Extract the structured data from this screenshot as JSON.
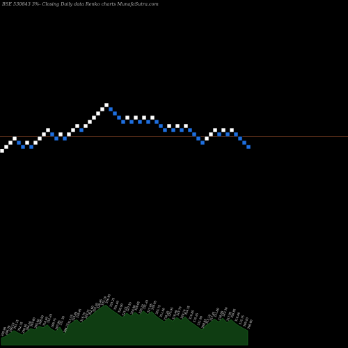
{
  "chart_data": {
    "type": "renko",
    "title": "BSE 530843 3%-  Closing Daily data  Renko  charts MunafaSutra.com",
    "colors": {
      "background": "#000000",
      "up_brick": "#ffffff",
      "down_brick": "#1e6fe0",
      "reference_line": "#a0522d",
      "volume_fill": "#0f3d12",
      "volume_line": "#1d6b22",
      "volume_label": "#e6e6e6"
    },
    "reference_price": 357.5,
    "bricks": [
      {
        "direction": "up",
        "price": 343.6
      },
      {
        "direction": "up",
        "price": 348.2
      },
      {
        "direction": "up",
        "price": 353.0
      },
      {
        "direction": "up",
        "price": 357.8
      },
      {
        "direction": "down",
        "price": 353.0
      },
      {
        "direction": "down",
        "price": 348.2
      },
      {
        "direction": "up",
        "price": 353.0
      },
      {
        "direction": "down",
        "price": 348.2
      },
      {
        "direction": "up",
        "price": 353.0
      },
      {
        "direction": "up",
        "price": 357.8
      },
      {
        "direction": "up",
        "price": 362.6
      },
      {
        "direction": "up",
        "price": 367.4
      },
      {
        "direction": "down",
        "price": 362.6
      },
      {
        "direction": "down",
        "price": 357.8
      },
      {
        "direction": "up",
        "price": 362.6
      },
      {
        "direction": "down",
        "price": 357.8
      },
      {
        "direction": "up",
        "price": 362.6
      },
      {
        "direction": "up",
        "price": 367.4
      },
      {
        "direction": "up",
        "price": 372.2
      },
      {
        "direction": "down",
        "price": 367.4
      },
      {
        "direction": "up",
        "price": 372.2
      },
      {
        "direction": "up",
        "price": 377.0
      },
      {
        "direction": "up",
        "price": 381.8
      },
      {
        "direction": "up",
        "price": 386.6
      },
      {
        "direction": "up",
        "price": 391.4
      },
      {
        "direction": "up",
        "price": 396.2
      },
      {
        "direction": "down",
        "price": 391.4
      },
      {
        "direction": "down",
        "price": 386.6
      },
      {
        "direction": "down",
        "price": 381.8
      },
      {
        "direction": "down",
        "price": 377.0
      },
      {
        "direction": "up",
        "price": 381.8
      },
      {
        "direction": "down",
        "price": 377.0
      },
      {
        "direction": "up",
        "price": 381.8
      },
      {
        "direction": "down",
        "price": 377.0
      },
      {
        "direction": "up",
        "price": 381.8
      },
      {
        "direction": "down",
        "price": 377.0
      },
      {
        "direction": "up",
        "price": 381.8
      },
      {
        "direction": "down",
        "price": 377.0
      },
      {
        "direction": "down",
        "price": 372.2
      },
      {
        "direction": "down",
        "price": 367.4
      },
      {
        "direction": "up",
        "price": 372.2
      },
      {
        "direction": "down",
        "price": 367.4
      },
      {
        "direction": "up",
        "price": 372.2
      },
      {
        "direction": "down",
        "price": 367.4
      },
      {
        "direction": "up",
        "price": 372.2
      },
      {
        "direction": "down",
        "price": 367.4
      },
      {
        "direction": "down",
        "price": 362.6
      },
      {
        "direction": "down",
        "price": 357.8
      },
      {
        "direction": "down",
        "price": 353.0
      },
      {
        "direction": "up",
        "price": 357.8
      },
      {
        "direction": "up",
        "price": 362.6
      },
      {
        "direction": "up",
        "price": 367.4
      },
      {
        "direction": "down",
        "price": 362.6
      },
      {
        "direction": "up",
        "price": 367.4
      },
      {
        "direction": "down",
        "price": 362.6
      },
      {
        "direction": "up",
        "price": 367.4
      },
      {
        "direction": "down",
        "price": 362.6
      },
      {
        "direction": "down",
        "price": 357.8
      },
      {
        "direction": "down",
        "price": 353.0
      },
      {
        "direction": "down",
        "price": 348.2
      }
    ],
    "volume": [
      {
        "label": "295.90",
        "value": 10
      },
      {
        "label": "296.30",
        "value": 12
      },
      {
        "label": "299.10",
        "value": 16
      },
      {
        "label": "301.15",
        "value": 20
      },
      {
        "label": "302.35",
        "value": 17
      },
      {
        "label": "299.95",
        "value": 14
      },
      {
        "label": "304.20",
        "value": 18
      },
      {
        "label": "303.80",
        "value": 23
      },
      {
        "label": "305.60",
        "value": 21
      },
      {
        "label": "308.50",
        "value": 26
      },
      {
        "label": "310.40",
        "value": 24
      },
      {
        "label": "312.20",
        "value": 28
      },
      {
        "label": "309.75",
        "value": 22
      },
      {
        "label": "307.95",
        "value": 19
      },
      {
        "label": "311.30",
        "value": 25
      },
      {
        "label": "306.15",
        "value": 15
      },
      {
        "label": "313.55",
        "value": 27
      },
      {
        "label": "315.80",
        "value": 31
      },
      {
        "label": "318.45",
        "value": 35
      },
      {
        "label": "316.70",
        "value": 30
      },
      {
        "label": "320.25",
        "value": 34
      },
      {
        "label": "322.60",
        "value": 39
      },
      {
        "label": "325.30",
        "value": 43
      },
      {
        "label": "328.45",
        "value": 48
      },
      {
        "label": "332.10",
        "value": 52
      },
      {
        "label": "336.85",
        "value": 55
      },
      {
        "label": "333.25",
        "value": 50
      },
      {
        "label": "330.40",
        "value": 46
      },
      {
        "label": "326.90",
        "value": 42
      },
      {
        "label": "323.15",
        "value": 38
      },
      {
        "label": "327.55",
        "value": 44
      },
      {
        "label": "324.80",
        "value": 40
      },
      {
        "label": "329.65",
        "value": 45
      },
      {
        "label": "326.10",
        "value": 41
      },
      {
        "label": "331.20",
        "value": 47
      },
      {
        "label": "327.05",
        "value": 42
      },
      {
        "label": "330.95",
        "value": 46
      },
      {
        "label": "325.75",
        "value": 40
      },
      {
        "label": "321.60",
        "value": 36
      },
      {
        "label": "318.20",
        "value": 32
      },
      {
        "label": "322.95",
        "value": 37
      },
      {
        "label": "319.40",
        "value": 33
      },
      {
        "label": "323.70",
        "value": 38
      },
      {
        "label": "320.10",
        "value": 34
      },
      {
        "label": "324.35",
        "value": 39
      },
      {
        "label": "319.85",
        "value": 33
      },
      {
        "label": "315.25",
        "value": 29
      },
      {
        "label": "311.90",
        "value": 25
      },
      {
        "label": "308.65",
        "value": 21
      },
      {
        "label": "313.10",
        "value": 27
      },
      {
        "label": "317.45",
        "value": 31
      },
      {
        "label": "321.80",
        "value": 36
      },
      {
        "label": "318.60",
        "value": 32
      },
      {
        "label": "322.30",
        "value": 37
      },
      {
        "label": "317.95",
        "value": 31
      },
      {
        "label": "320.85",
        "value": 35
      },
      {
        "label": "316.40",
        "value": 30
      },
      {
        "label": "312.75",
        "value": 26
      },
      {
        "label": "309.20",
        "value": 23
      },
      {
        "label": "306.80",
        "value": 20
      }
    ]
  }
}
